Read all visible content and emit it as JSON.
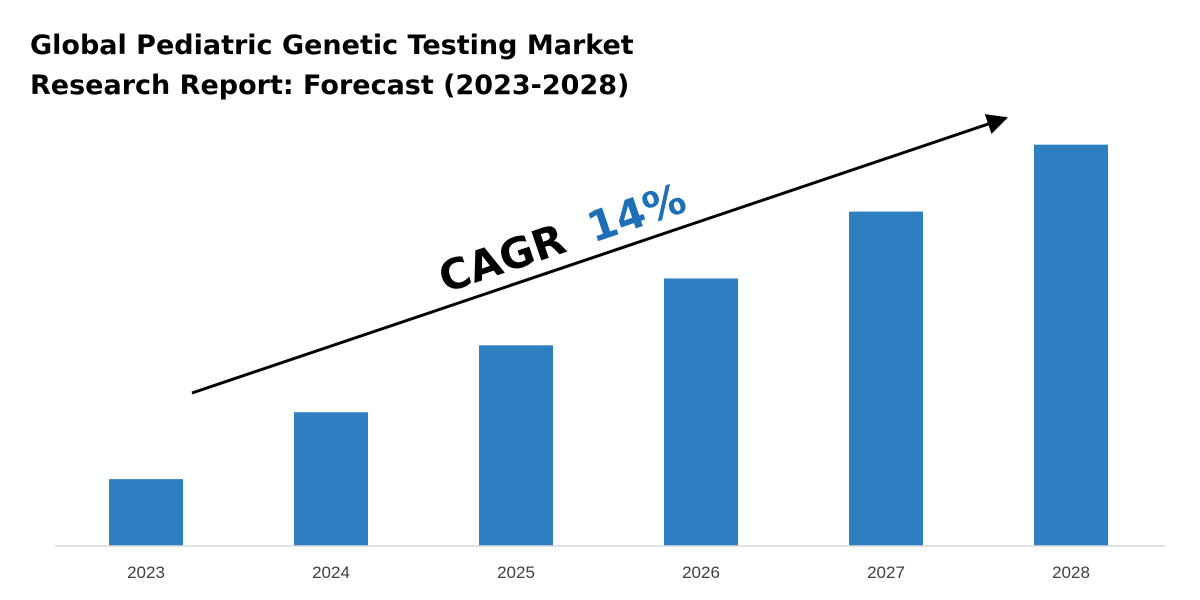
{
  "title_lines": [
    "Global Pediatric Genetic Testing Market",
    "Research Report: Forecast (2023-2028)"
  ],
  "annotation": {
    "label": "CAGR",
    "value": "14%"
  },
  "colors": {
    "bar": "#2e7ec2",
    "accent": "#1f6fb8",
    "axis": "#d9d9d9",
    "arrow": "#000000"
  },
  "chart_data": {
    "type": "bar",
    "categories": [
      "2023",
      "2024",
      "2025",
      "2026",
      "2027",
      "2028"
    ],
    "values": [
      1.0,
      2.0,
      3.0,
      4.0,
      5.0,
      6.0
    ],
    "title": "Global Pediatric Genetic Testing Market Research Report: Forecast (2023-2028)",
    "xlabel": "",
    "ylabel": "",
    "ylim": [
      0,
      6.04
    ],
    "grid": false,
    "legend": "none",
    "annotations": [
      "CAGR 14%"
    ]
  }
}
